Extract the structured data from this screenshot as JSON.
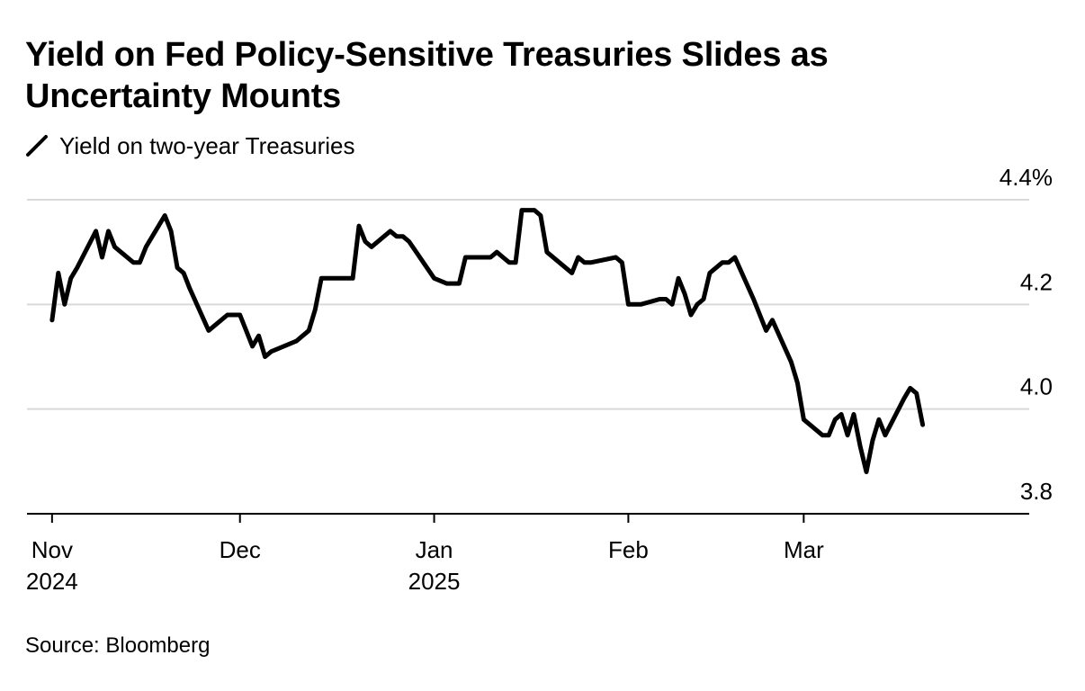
{
  "title": "Yield on Fed Policy-Sensitive Treasuries Slides as Uncertainty Mounts",
  "legend": {
    "label": "Yield on two-year Treasuries"
  },
  "source": "Source: Bloomberg",
  "colors": {
    "line": "#000000",
    "grid": "#d9d9d9",
    "axis": "#000000"
  },
  "chart_data": {
    "type": "line",
    "title": "Yield on Fed Policy-Sensitive Treasuries Slides as Uncertainty Mounts",
    "xlabel": "",
    "ylabel": "",
    "ylim": [
      3.8,
      4.4
    ],
    "xlim": [
      "2024-10-28",
      "2025-04-06"
    ],
    "yticks": [
      {
        "value": 3.8,
        "label": "3.8"
      },
      {
        "value": 4.0,
        "label": "4.0"
      },
      {
        "value": 4.2,
        "label": "4.2"
      },
      {
        "value": 4.4,
        "label": "4.4%"
      }
    ],
    "xticks": [
      {
        "date": "2024-11-01",
        "label": "Nov",
        "sublabel": "2024"
      },
      {
        "date": "2024-12-01",
        "label": "Dec",
        "sublabel": ""
      },
      {
        "date": "2025-01-01",
        "label": "Jan",
        "sublabel": "2025"
      },
      {
        "date": "2025-02-01",
        "label": "Feb",
        "sublabel": ""
      },
      {
        "date": "2025-03-01",
        "label": "Mar",
        "sublabel": ""
      }
    ],
    "grid": "horizontal",
    "legend_position": "top-left",
    "series": [
      {
        "name": "Yield on two-year Treasuries",
        "x": [
          "2024-11-01",
          "2024-11-02",
          "2024-11-03",
          "2024-11-04",
          "2024-11-05",
          "2024-11-08",
          "2024-11-09",
          "2024-11-10",
          "2024-11-11",
          "2024-11-12",
          "2024-11-14",
          "2024-11-15",
          "2024-11-16",
          "2024-11-19",
          "2024-11-20",
          "2024-11-21",
          "2024-11-22",
          "2024-11-23",
          "2024-11-26",
          "2024-11-27",
          "2024-11-29",
          "2024-12-01",
          "2024-12-03",
          "2024-12-04",
          "2024-12-05",
          "2024-12-06",
          "2024-12-10",
          "2024-12-11",
          "2024-12-12",
          "2024-12-13",
          "2024-12-14",
          "2024-12-16",
          "2024-12-19",
          "2024-12-20",
          "2024-12-21",
          "2024-12-22",
          "2024-12-25",
          "2024-12-26",
          "2024-12-27",
          "2024-12-28",
          "2025-01-01",
          "2025-01-03",
          "2025-01-05",
          "2025-01-06",
          "2025-01-08",
          "2025-01-10",
          "2025-01-11",
          "2025-01-12",
          "2025-01-13",
          "2025-01-14",
          "2025-01-15",
          "2025-01-16",
          "2025-01-17",
          "2025-01-18",
          "2025-01-19",
          "2025-01-23",
          "2025-01-24",
          "2025-01-25",
          "2025-01-26",
          "2025-01-30",
          "2025-01-31",
          "2025-02-01",
          "2025-02-03",
          "2025-02-06",
          "2025-02-07",
          "2025-02-08",
          "2025-02-09",
          "2025-02-10",
          "2025-02-11",
          "2025-02-12",
          "2025-02-13",
          "2025-02-14",
          "2025-02-16",
          "2025-02-17",
          "2025-02-18",
          "2025-02-21",
          "2025-02-22",
          "2025-02-23",
          "2025-02-24",
          "2025-02-27",
          "2025-02-28",
          "2025-03-01",
          "2025-03-02",
          "2025-03-03",
          "2025-03-04",
          "2025-03-05",
          "2025-03-06",
          "2025-03-07",
          "2025-03-08",
          "2025-03-09",
          "2025-03-10",
          "2025-03-11",
          "2025-03-12",
          "2025-03-13",
          "2025-03-14",
          "2025-03-17",
          "2025-03-18",
          "2025-03-19",
          "2025-03-20"
        ],
        "values": [
          4.17,
          4.26,
          4.2,
          4.25,
          4.27,
          4.34,
          4.29,
          4.34,
          4.31,
          4.3,
          4.28,
          4.28,
          4.31,
          4.37,
          4.34,
          4.27,
          4.26,
          4.23,
          4.15,
          4.16,
          4.18,
          4.18,
          4.12,
          4.14,
          4.1,
          4.11,
          4.13,
          4.14,
          4.15,
          4.19,
          4.25,
          4.25,
          4.25,
          4.35,
          4.32,
          4.31,
          4.34,
          4.33,
          4.33,
          4.32,
          4.25,
          4.24,
          4.24,
          4.29,
          4.29,
          4.29,
          4.3,
          4.29,
          4.28,
          4.28,
          4.38,
          4.38,
          4.38,
          4.37,
          4.3,
          4.26,
          4.29,
          4.28,
          4.28,
          4.29,
          4.28,
          4.2,
          4.2,
          4.21,
          4.21,
          4.2,
          4.25,
          4.22,
          4.18,
          4.2,
          4.21,
          4.26,
          4.28,
          4.28,
          4.29,
          4.21,
          4.18,
          4.15,
          4.17,
          4.09,
          4.05,
          3.98,
          3.97,
          3.96,
          3.95,
          3.95,
          3.98,
          3.99,
          3.95,
          3.99,
          3.93,
          3.88,
          3.94,
          3.98,
          3.95,
          4.02,
          4.04,
          4.03,
          3.97
        ]
      }
    ]
  }
}
